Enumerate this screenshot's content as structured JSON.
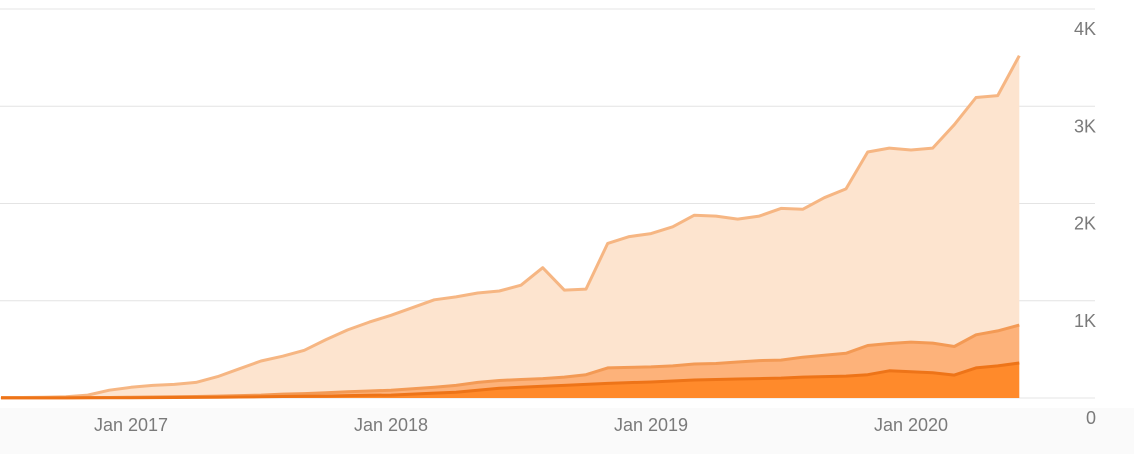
{
  "chart_data": {
    "type": "stacked_area",
    "x": [
      "2016-07",
      "2016-08",
      "2016-09",
      "2016-10",
      "2016-11",
      "2016-12",
      "2017-01",
      "2017-02",
      "2017-03",
      "2017-04",
      "2017-05",
      "2017-06",
      "2017-07",
      "2017-08",
      "2017-09",
      "2017-10",
      "2017-11",
      "2017-12",
      "2018-01",
      "2018-02",
      "2018-03",
      "2018-04",
      "2018-05",
      "2018-06",
      "2018-07",
      "2018-08",
      "2018-09",
      "2018-10",
      "2018-11",
      "2018-12",
      "2019-01",
      "2019-02",
      "2019-03",
      "2019-04",
      "2019-05",
      "2019-06",
      "2019-07",
      "2019-08",
      "2019-09",
      "2019-10",
      "2019-11",
      "2019-12",
      "2020-01",
      "2020-02",
      "2020-03",
      "2020-04",
      "2020-05",
      "2020-06"
    ],
    "series": [
      {
        "color": "#ff8a2b",
        "line_color": "#ee7418",
        "values": [
          1,
          1,
          1,
          1,
          2,
          2,
          3,
          4,
          5,
          6,
          8,
          10,
          12,
          15,
          18,
          20,
          25,
          28,
          30,
          40,
          50,
          60,
          80,
          100,
          110,
          120,
          130,
          140,
          150,
          158,
          165,
          175,
          185,
          190,
          195,
          200,
          205,
          215,
          220,
          225,
          240,
          280,
          270,
          260,
          235,
          310,
          330,
          360
        ]
      },
      {
        "color": "#fdb27a",
        "line_color": "#f39a55",
        "values": [
          1,
          1,
          2,
          2,
          2,
          3,
          5,
          6,
          7,
          9,
          12,
          15,
          18,
          25,
          27,
          35,
          40,
          44,
          50,
          55,
          60,
          70,
          80,
          80,
          80,
          80,
          85,
          100,
          160,
          157,
          155,
          155,
          165,
          165,
          175,
          185,
          185,
          205,
          220,
          235,
          300,
          280,
          305,
          305,
          295,
          340,
          360,
          390
        ]
      },
      {
        "color": "#fde4cf",
        "line_color": "#f6b683",
        "values": [
          3,
          3,
          5,
          9,
          26,
          75,
          102,
          120,
          128,
          145,
          200,
          275,
          350,
          390,
          445,
          545,
          635,
          708,
          770,
          835,
          900,
          910,
          920,
          920,
          970,
          1140,
          895,
          880,
          1280,
          1345,
          1370,
          1430,
          1530,
          1515,
          1470,
          1485,
          1560,
          1520,
          1620,
          1690,
          1990,
          2010,
          1975,
          2005,
          2280,
          2440,
          2420,
          2770
        ]
      }
    ],
    "xticks": [
      {
        "value": "2017-01",
        "label": "Jan 2017"
      },
      {
        "value": "2018-01",
        "label": "Jan 2018"
      },
      {
        "value": "2019-01",
        "label": "Jan 2019"
      },
      {
        "value": "2020-01",
        "label": "Jan 2020"
      }
    ],
    "ylim": [
      0,
      4000
    ],
    "yticks": [
      0,
      {
        "value": 1000,
        "label": "1K"
      },
      {
        "value": 2000,
        "label": "2K"
      },
      {
        "value": 3000,
        "label": "3K"
      },
      {
        "value": 4000,
        "label": "4K"
      }
    ],
    "grid": true
  }
}
